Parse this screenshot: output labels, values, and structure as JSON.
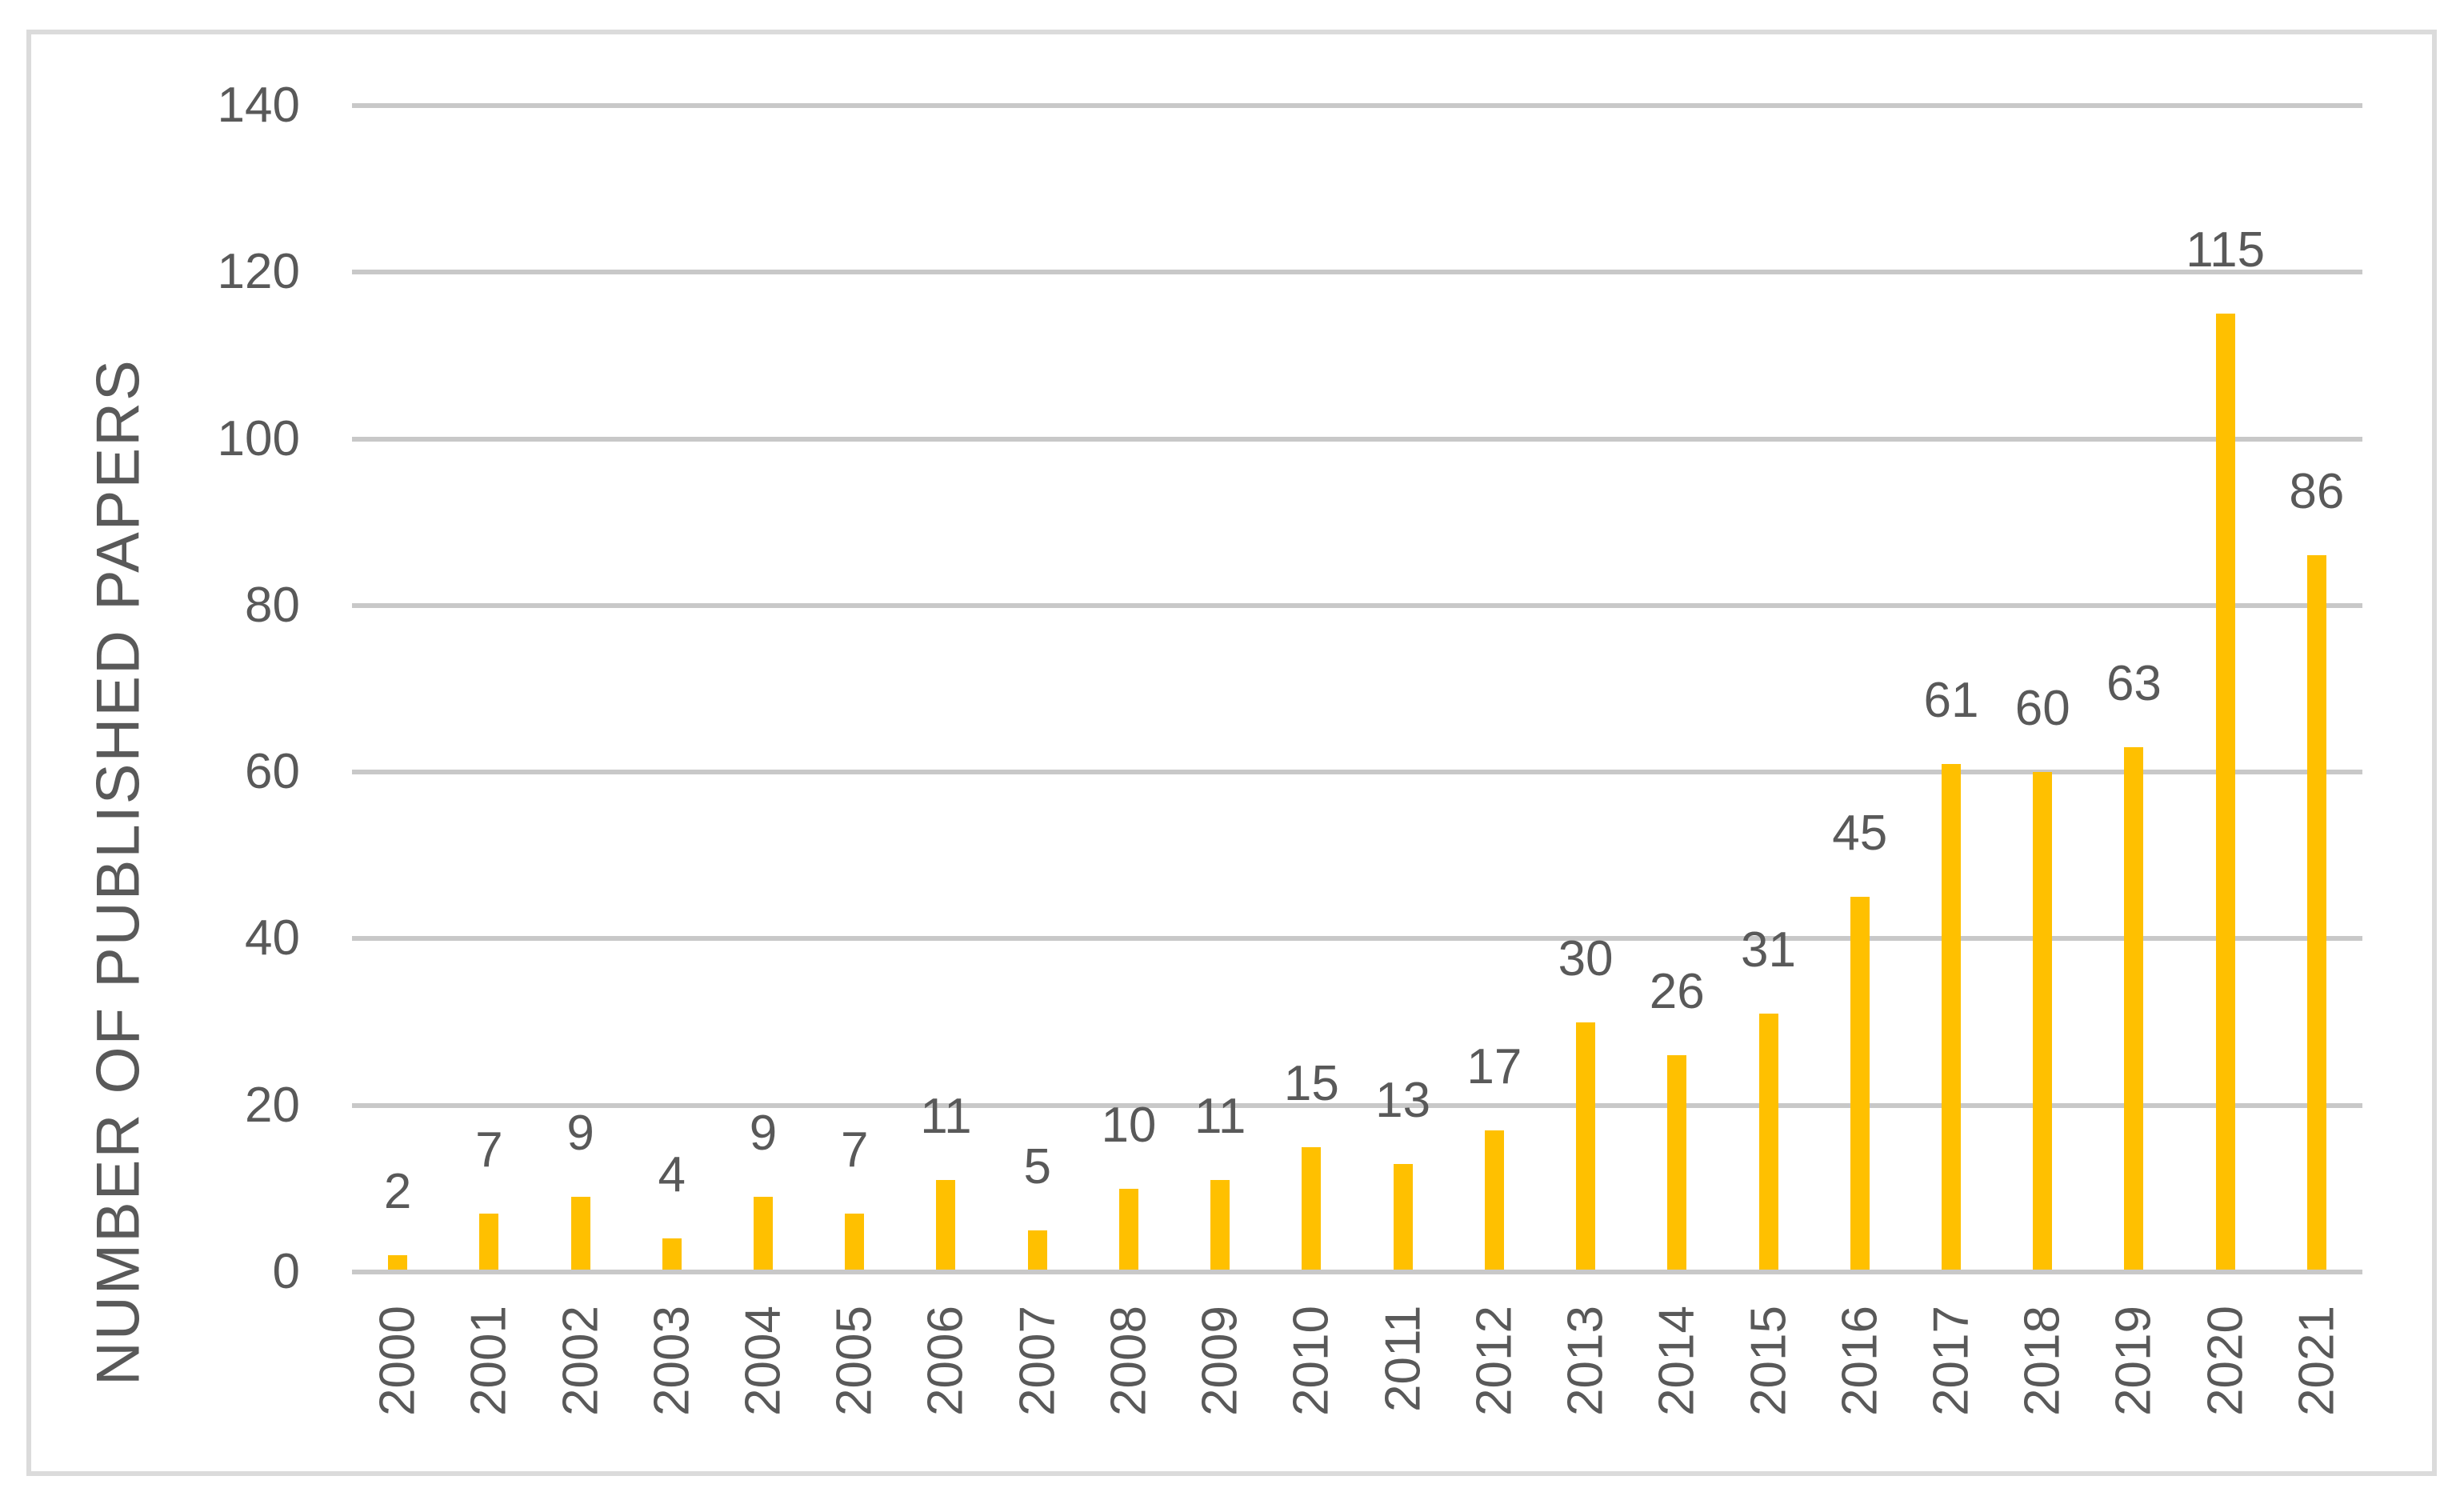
{
  "chart_data": {
    "type": "bar",
    "title": "",
    "xlabel": "",
    "ylabel": "NUMBER OF PUBLISHED PAPERS",
    "categories": [
      "2000",
      "2001",
      "2002",
      "2003",
      "2004",
      "2005",
      "2006",
      "2007",
      "2008",
      "2009",
      "2010",
      "2011",
      "2012",
      "2013",
      "2014",
      "2015",
      "2016",
      "2017",
      "2018",
      "2019",
      "2020",
      "2021"
    ],
    "values": [
      2,
      7,
      9,
      4,
      9,
      7,
      11,
      5,
      10,
      11,
      15,
      13,
      17,
      30,
      26,
      31,
      45,
      61,
      60,
      63,
      115,
      86
    ],
    "data_labels_shown": true,
    "y_ticks": [
      0,
      20,
      40,
      60,
      80,
      100,
      120,
      140
    ],
    "ylim": [
      0,
      140
    ],
    "grid": "horizontal",
    "legend": "none",
    "bar_color": "#FFC000",
    "text_color": "#595959",
    "gridline_color": "#C8C8C8",
    "axis_line_color": "#C8C8C8",
    "frame_border_color": "#DBDBDB"
  }
}
